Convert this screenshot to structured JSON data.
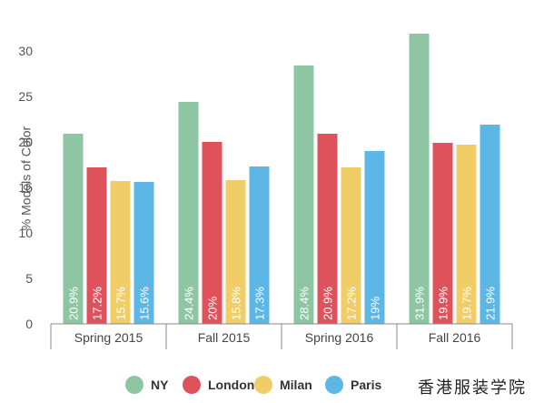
{
  "chart_data": {
    "type": "bar",
    "title": "",
    "xlabel": "",
    "ylabel": "% Models of Color",
    "ylim": [
      0,
      31
    ],
    "yticks": [
      0,
      5,
      10,
      15,
      20,
      25,
      30
    ],
    "grid": false,
    "legend_position": "bottom",
    "categories": [
      "Spring 2015",
      "Fall 2015",
      "Spring 2016",
      "Fall 2016"
    ],
    "series": [
      {
        "name": "NY",
        "color": "#8ec6a4",
        "values": [
          20.9,
          24.4,
          28.4,
          31.9
        ],
        "labels": [
          "20.9%",
          "24.4%",
          "28.4%",
          "31.9%"
        ]
      },
      {
        "name": "London",
        "color": "#e0525b",
        "values": [
          17.2,
          20.0,
          20.9,
          19.9
        ],
        "labels": [
          "17.2%",
          "20%",
          "20.9%",
          "19.9%"
        ]
      },
      {
        "name": "Milan",
        "color": "#f1cd67",
        "values": [
          15.7,
          15.8,
          17.2,
          19.7
        ],
        "labels": [
          "15.7%",
          "15.8%",
          "17.2%",
          "19.7%"
        ]
      },
      {
        "name": "Paris",
        "color": "#5cb7e6",
        "values": [
          15.6,
          17.3,
          19.0,
          21.9
        ],
        "labels": [
          "15.6%",
          "17.3%",
          "19%",
          "21.9%"
        ]
      }
    ]
  },
  "watermark": "香港服装学院"
}
